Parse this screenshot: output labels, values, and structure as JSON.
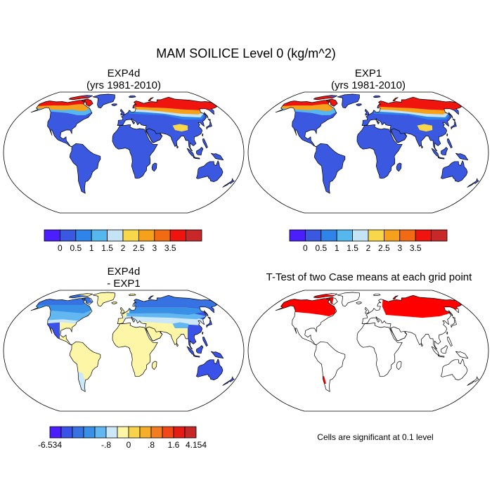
{
  "figure": {
    "title": "MAM SOILICE Level 0 (kg/m^2)",
    "footnote": "Cells are significant at 0.1 level"
  },
  "colors": {
    "land_outline": "#000000",
    "ocean": "#ffffff",
    "significance": "#ff0000",
    "scale_a": [
      "#4b1eff",
      "#3a58e0",
      "#2e84e8",
      "#56b6ee",
      "#c4e4f6",
      "#f8d74a",
      "#f6a11c",
      "#f26a14",
      "#f0140f",
      "#c82828"
    ],
    "scale_b": [
      "#4b1eff",
      "#3a52e8",
      "#3772e2",
      "#3891e6",
      "#63b7f0",
      "#cce8f8",
      "#fdf6a6",
      "#f8d24a",
      "#f6ae2a",
      "#f47c20",
      "#f24818",
      "#e41c14",
      "#c62828"
    ]
  },
  "chart_data": [
    {
      "type": "heatmap",
      "title": "EXP4d",
      "subtitle": "(yrs 1981-2010)",
      "projection": "robinson",
      "colorbar_ticks": [
        "0",
        "0.5",
        "1",
        "1.5",
        "2",
        "2.5",
        "3",
        "3.5"
      ],
      "colorbar_levels": [
        0,
        0.5,
        1,
        1.5,
        2,
        2.5,
        3,
        3.5
      ]
    },
    {
      "type": "heatmap",
      "title": "EXP1",
      "subtitle": "(yrs 1981-2010)",
      "projection": "robinson",
      "colorbar_ticks": [
        "0",
        "0.5",
        "1",
        "1.5",
        "2",
        "2.5",
        "3",
        "3.5"
      ],
      "colorbar_levels": [
        0,
        0.5,
        1,
        1.5,
        2,
        2.5,
        3,
        3.5
      ]
    },
    {
      "type": "heatmap",
      "title": "EXP4d",
      "subtitle": "- EXP1",
      "projection": "robinson",
      "colorbar_ticks": [
        "-6.534",
        "-.8",
        "0",
        ".8",
        "1.6",
        "4.154"
      ],
      "colorbar_levels": [
        -6.534,
        -0.8,
        0,
        0.8,
        1.6,
        4.154
      ]
    },
    {
      "type": "heatmap",
      "title": "T-Test of two Case means at each grid point",
      "projection": "robinson"
    }
  ]
}
